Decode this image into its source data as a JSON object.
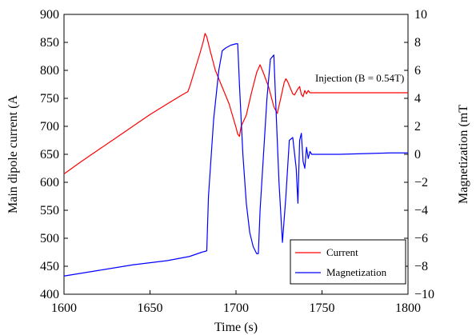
{
  "chart_data": {
    "type": "line",
    "xlabel": "Time (s)",
    "ylabel_left": "Main dipole current (A",
    "ylabel_right": "Magnetization (mT",
    "xlim": [
      1600,
      1800
    ],
    "ylim_left": [
      400,
      900
    ],
    "ylim_right": [
      -10,
      10
    ],
    "x_ticks": [
      1600,
      1650,
      1700,
      1750,
      1800
    ],
    "y_left_ticks": [
      400,
      450,
      500,
      550,
      600,
      650,
      700,
      750,
      800,
      850,
      900
    ],
    "y_right_ticks": [
      -10,
      -8,
      -6,
      -4,
      -2,
      0,
      2,
      4,
      6,
      8,
      10
    ],
    "grid": false,
    "legend_position": "bottom-right",
    "annotation": "Injection (B = 0.54T)",
    "series": [
      {
        "name": "Current",
        "axis": "left",
        "color": "#ff0000",
        "points": [
          [
            1600,
            615
          ],
          [
            1610,
            637
          ],
          [
            1620,
            658
          ],
          [
            1630,
            679
          ],
          [
            1640,
            700
          ],
          [
            1650,
            721
          ],
          [
            1660,
            740
          ],
          [
            1668,
            755
          ],
          [
            1672,
            762
          ],
          [
            1673,
            770
          ],
          [
            1676,
            800
          ],
          [
            1679,
            830
          ],
          [
            1681,
            852
          ],
          [
            1682,
            866
          ],
          [
            1683,
            860
          ],
          [
            1685,
            835
          ],
          [
            1688,
            800
          ],
          [
            1692,
            770
          ],
          [
            1696,
            740
          ],
          [
            1700,
            698
          ],
          [
            1701,
            686
          ],
          [
            1702,
            682
          ],
          [
            1703,
            700
          ],
          [
            1706,
            720
          ],
          [
            1709,
            760
          ],
          [
            1712,
            796
          ],
          [
            1714,
            810
          ],
          [
            1716,
            795
          ],
          [
            1719,
            770
          ],
          [
            1722,
            735
          ],
          [
            1724,
            723
          ],
          [
            1726,
            750
          ],
          [
            1728,
            778
          ],
          [
            1729,
            785
          ],
          [
            1730,
            780
          ],
          [
            1733,
            758
          ],
          [
            1734,
            756
          ],
          [
            1736,
            767
          ],
          [
            1737,
            771
          ],
          [
            1738,
            757
          ],
          [
            1739,
            753
          ],
          [
            1740,
            764
          ],
          [
            1741,
            758
          ],
          [
            1742,
            764
          ],
          [
            1743,
            760
          ],
          [
            1800,
            760
          ]
        ]
      },
      {
        "name": "Magnetization",
        "axis": "right",
        "color": "#0000ff",
        "points": [
          [
            1600,
            -8.7
          ],
          [
            1620,
            -8.3
          ],
          [
            1640,
            -7.9
          ],
          [
            1660,
            -7.6
          ],
          [
            1673,
            -7.3
          ],
          [
            1680,
            -7.0
          ],
          [
            1683,
            -6.9
          ],
          [
            1684,
            -3.0
          ],
          [
            1687,
            2.5
          ],
          [
            1690,
            6.0
          ],
          [
            1692,
            7.4
          ],
          [
            1694,
            7.6
          ],
          [
            1697,
            7.8
          ],
          [
            1700,
            7.9
          ],
          [
            1701,
            7.9
          ],
          [
            1702,
            5.0
          ],
          [
            1704,
            0.0
          ],
          [
            1706,
            -3.5
          ],
          [
            1708,
            -5.6
          ],
          [
            1710,
            -6.6
          ],
          [
            1712,
            -7.1
          ],
          [
            1713,
            -7.1
          ],
          [
            1714,
            -4.0
          ],
          [
            1716,
            0.0
          ],
          [
            1718,
            4.0
          ],
          [
            1720,
            6.8
          ],
          [
            1722,
            7.1
          ],
          [
            1723,
            4.0
          ],
          [
            1725,
            -2.0
          ],
          [
            1727,
            -6.3
          ],
          [
            1729,
            -3.0
          ],
          [
            1731,
            1.0
          ],
          [
            1733,
            1.2
          ],
          [
            1735,
            -1.0
          ],
          [
            1736,
            -3.5
          ],
          [
            1737,
            1.0
          ],
          [
            1738,
            1.5
          ],
          [
            1739,
            -0.5
          ],
          [
            1740,
            -1.0
          ],
          [
            1741,
            0.5
          ],
          [
            1742,
            -0.3
          ],
          [
            1743,
            0.2
          ],
          [
            1744,
            0.0
          ],
          [
            1760,
            0.0
          ],
          [
            1790,
            0.1
          ],
          [
            1800,
            0.1
          ]
        ]
      }
    ]
  }
}
